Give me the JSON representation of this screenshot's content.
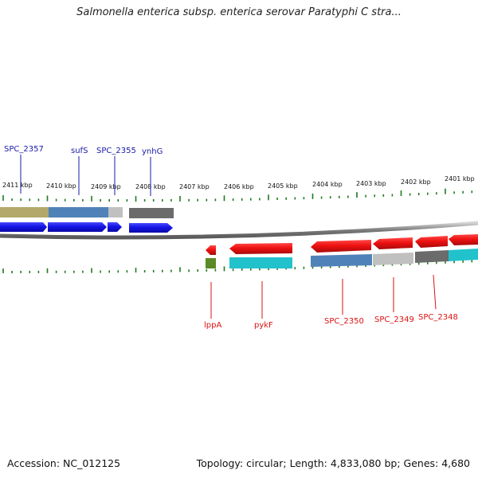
{
  "title": "Salmonella enterica subsp. enterica serovar Paratyphi C stra...",
  "footer": {
    "accession": "Accession: NC_012125",
    "summary": "Topology: circular; Length: 4,833,080 bp; Genes: 4,680"
  },
  "scale": {
    "labels": [
      "2411 kbp",
      "2410 kbp",
      "2409 kbp",
      "2408 kbp",
      "2407 kbp",
      "2406 kbp",
      "2405 kbp",
      "2404 kbp",
      "2403 kbp",
      "2402 kbp",
      "2401 kbp"
    ]
  },
  "genes_top": [
    "SPC_2357",
    "sufS",
    "SPC_2355",
    "ynhG"
  ],
  "genes_bottom": [
    "lppA",
    "pykF",
    "SPC_2350",
    "SPC_2349",
    "SPC_2348"
  ],
  "colors": {
    "forward_strand": "#1a1aee",
    "reverse_strand": "#ee1111",
    "backbone": "#8a8a8a",
    "tick": "#1f7a1f",
    "olive": "#b3a86a",
    "steelblue": "#4f82b8",
    "lightgray": "#c0c0c0",
    "darkgray": "#6b6b6b",
    "cyan": "#22c2cc",
    "green": "#5c8a26"
  }
}
